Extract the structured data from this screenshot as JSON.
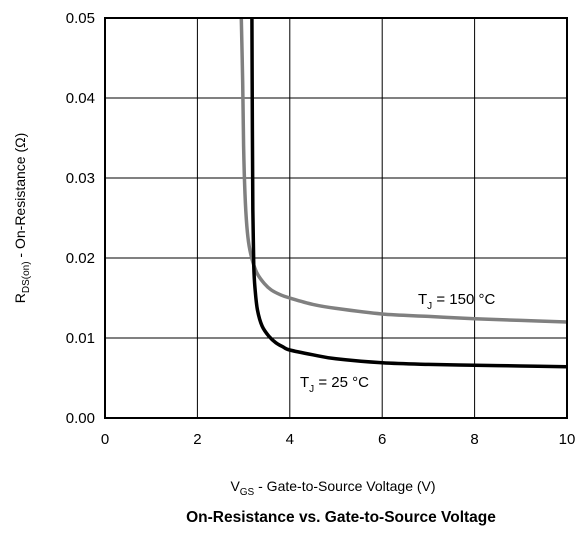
{
  "chart_data": {
    "type": "line",
    "title": "On-Resistance vs. Gate-to-Source Voltage",
    "xlabel": {
      "main": "V",
      "sub": "GS",
      "rest": " - Gate-to-Source Voltage (V)"
    },
    "ylabel": {
      "main": "R",
      "sub": "DS(on)",
      "rest": " - On-Resistance (Ω)"
    },
    "xlim": [
      0,
      10
    ],
    "ylim": [
      0,
      0.05
    ],
    "xticks": [
      "0",
      "2",
      "4",
      "6",
      "8",
      "10"
    ],
    "yticks": [
      "0.00",
      "0.01",
      "0.02",
      "0.03",
      "0.04",
      "0.05"
    ],
    "grid": true,
    "series": [
      {
        "name": {
          "main": "T",
          "sub": "J",
          "rest": " = 150 °C"
        },
        "color": "#808080",
        "x": [
          2.95,
          2.98,
          3.0,
          3.03,
          3.07,
          3.12,
          3.2,
          3.3,
          3.45,
          3.6,
          3.8,
          4.0,
          4.5,
          5.0,
          6.0,
          7.0,
          8.0,
          9.0,
          10.0
        ],
        "y": [
          0.05,
          0.042,
          0.034,
          0.028,
          0.024,
          0.0215,
          0.0195,
          0.018,
          0.0168,
          0.016,
          0.0154,
          0.015,
          0.0142,
          0.0137,
          0.013,
          0.0127,
          0.0124,
          0.0122,
          0.012
        ]
      },
      {
        "name": {
          "main": "T",
          "sub": "J",
          "rest": " = 25 °C"
        },
        "color": "#000000",
        "x": [
          3.18,
          3.19,
          3.2,
          3.22,
          3.25,
          3.3,
          3.4,
          3.55,
          3.7,
          3.85,
          4.0,
          4.5,
          5.0,
          6.0,
          7.0,
          8.0,
          9.0,
          10.0
        ],
        "y": [
          0.05,
          0.036,
          0.026,
          0.019,
          0.016,
          0.0135,
          0.0115,
          0.0102,
          0.0094,
          0.0089,
          0.0085,
          0.0079,
          0.0074,
          0.0069,
          0.0067,
          0.0066,
          0.0065,
          0.0064
        ]
      }
    ]
  }
}
